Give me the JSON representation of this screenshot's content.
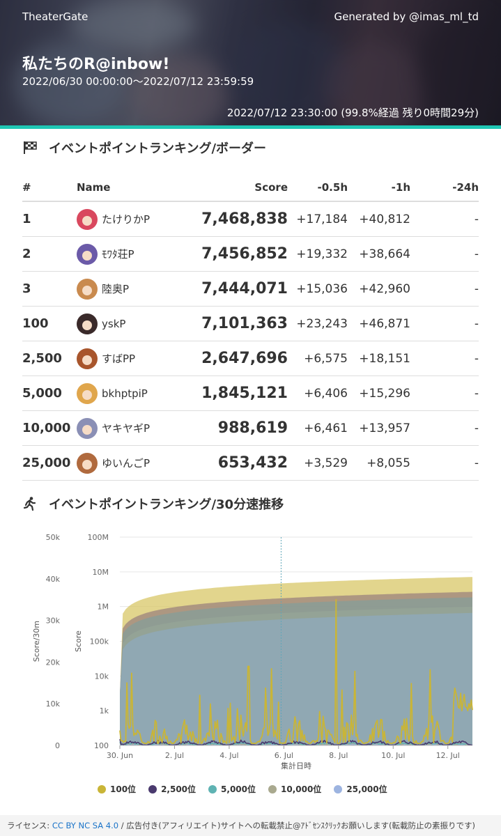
{
  "header": {
    "brand": "TheaterGate",
    "generated_by": "Generated by @imas_ml_td",
    "event_title": "私たちのR@inbow!",
    "period": "2022/06/30 00:00:00～2022/07/12 23:59:59",
    "current_time": "2022/07/12 23:30:00 (99.8%経過 残り0時間29分)",
    "accent_color": "#1fc7b4"
  },
  "ranking": {
    "section_title": "イベントポイントランキング/ボーダー",
    "icon": "checkered-flag-icon",
    "columns": {
      "rank": "#",
      "name": "Name",
      "score": "Score",
      "h05": "-0.5h",
      "h1": "-1h",
      "h24": "-24h"
    },
    "rows": [
      {
        "rank": "1",
        "name": "たけりかP",
        "score": "7,468,838",
        "h05": "+17,184",
        "h1": "+40,812",
        "h24": "-",
        "avatar_color": "#d9485e"
      },
      {
        "rank": "2",
        "name": "ﾓﾜﾀ荘P",
        "score": "7,456,852",
        "h05": "+19,332",
        "h1": "+38,664",
        "h24": "-",
        "avatar_color": "#6b5aa8"
      },
      {
        "rank": "3",
        "name": "陸奥P",
        "score": "7,444,071",
        "h05": "+15,036",
        "h1": "+42,960",
        "h24": "-",
        "avatar_color": "#c98a4e"
      },
      {
        "rank": "100",
        "name": "yskP",
        "score": "7,101,363",
        "h05": "+23,243",
        "h1": "+46,871",
        "h24": "-",
        "avatar_color": "#3a2a2a"
      },
      {
        "rank": "2,500",
        "name": "すばPP",
        "score": "2,647,696",
        "h05": "+6,575",
        "h1": "+18,151",
        "h24": "-",
        "avatar_color": "#a8552c"
      },
      {
        "rank": "5,000",
        "name": "bkhptpiP",
        "score": "1,845,121",
        "h05": "+6,406",
        "h1": "+15,296",
        "h24": "-",
        "avatar_color": "#e0a64c"
      },
      {
        "rank": "10,000",
        "name": "ヤキヤギP",
        "score": "988,619",
        "h05": "+6,461",
        "h1": "+13,957",
        "h24": "-",
        "avatar_color": "#8a8fb5"
      },
      {
        "rank": "25,000",
        "name": "ゆいんごP",
        "score": "653,432",
        "h05": "+3,529",
        "h1": "+8,055",
        "h24": "-",
        "avatar_color": "#b06a3e"
      }
    ]
  },
  "speed": {
    "section_title": "イベントポイントランキング/30分速推移",
    "icon": "running-person-icon"
  },
  "chart_data": {
    "type": "area",
    "xlabel": "集計日時",
    "ylabel_left": "Score/30m",
    "ylabel_right": "Score",
    "x_ticks": [
      "30. Jun",
      "2. Jul",
      "4. Jul",
      "6. Jul",
      "8. Jul",
      "10. Jul",
      "12. Jul"
    ],
    "left_axis": {
      "ticks": [
        "0",
        "10k",
        "20k",
        "30k",
        "40k",
        "50k"
      ],
      "ylim": [
        0,
        50000
      ]
    },
    "right_axis": {
      "scale": "log",
      "ticks": [
        "100",
        "1k",
        "10k",
        "100k",
        "1M",
        "10M",
        "100M"
      ],
      "ylim": [
        100,
        100000000
      ]
    },
    "marker_date": "6. Jul",
    "series": [
      {
        "name": "100位",
        "color": "#c9b537",
        "final_score": 7101363,
        "typical_speed": 1200,
        "peak_speed": 35000
      },
      {
        "name": "2,500位",
        "color": "#4a3a6e",
        "final_score": 2647696,
        "typical_speed": 500,
        "peak_speed": 3500
      },
      {
        "name": "5,000位",
        "color": "#5fb3b3",
        "final_score": 1845121,
        "typical_speed": 300,
        "peak_speed": 2500
      },
      {
        "name": "10,000位",
        "color": "#a9a98f",
        "final_score": 988619,
        "typical_speed": 200,
        "peak_speed": 1500
      },
      {
        "name": "25,000位",
        "color": "#9db4e0",
        "final_score": 653432,
        "typical_speed": 120,
        "peak_speed": 900
      }
    ]
  },
  "footer": {
    "prefix": "ライセンス: ",
    "license_link": "CC BY NC SA 4.0",
    "suffix": " / 広告付き(アフィリエイト)サイトへの転載禁止@ｱﾄﾞｾﾝｽｸﾘｯｸお願いします(転載防止の素振りです)"
  }
}
